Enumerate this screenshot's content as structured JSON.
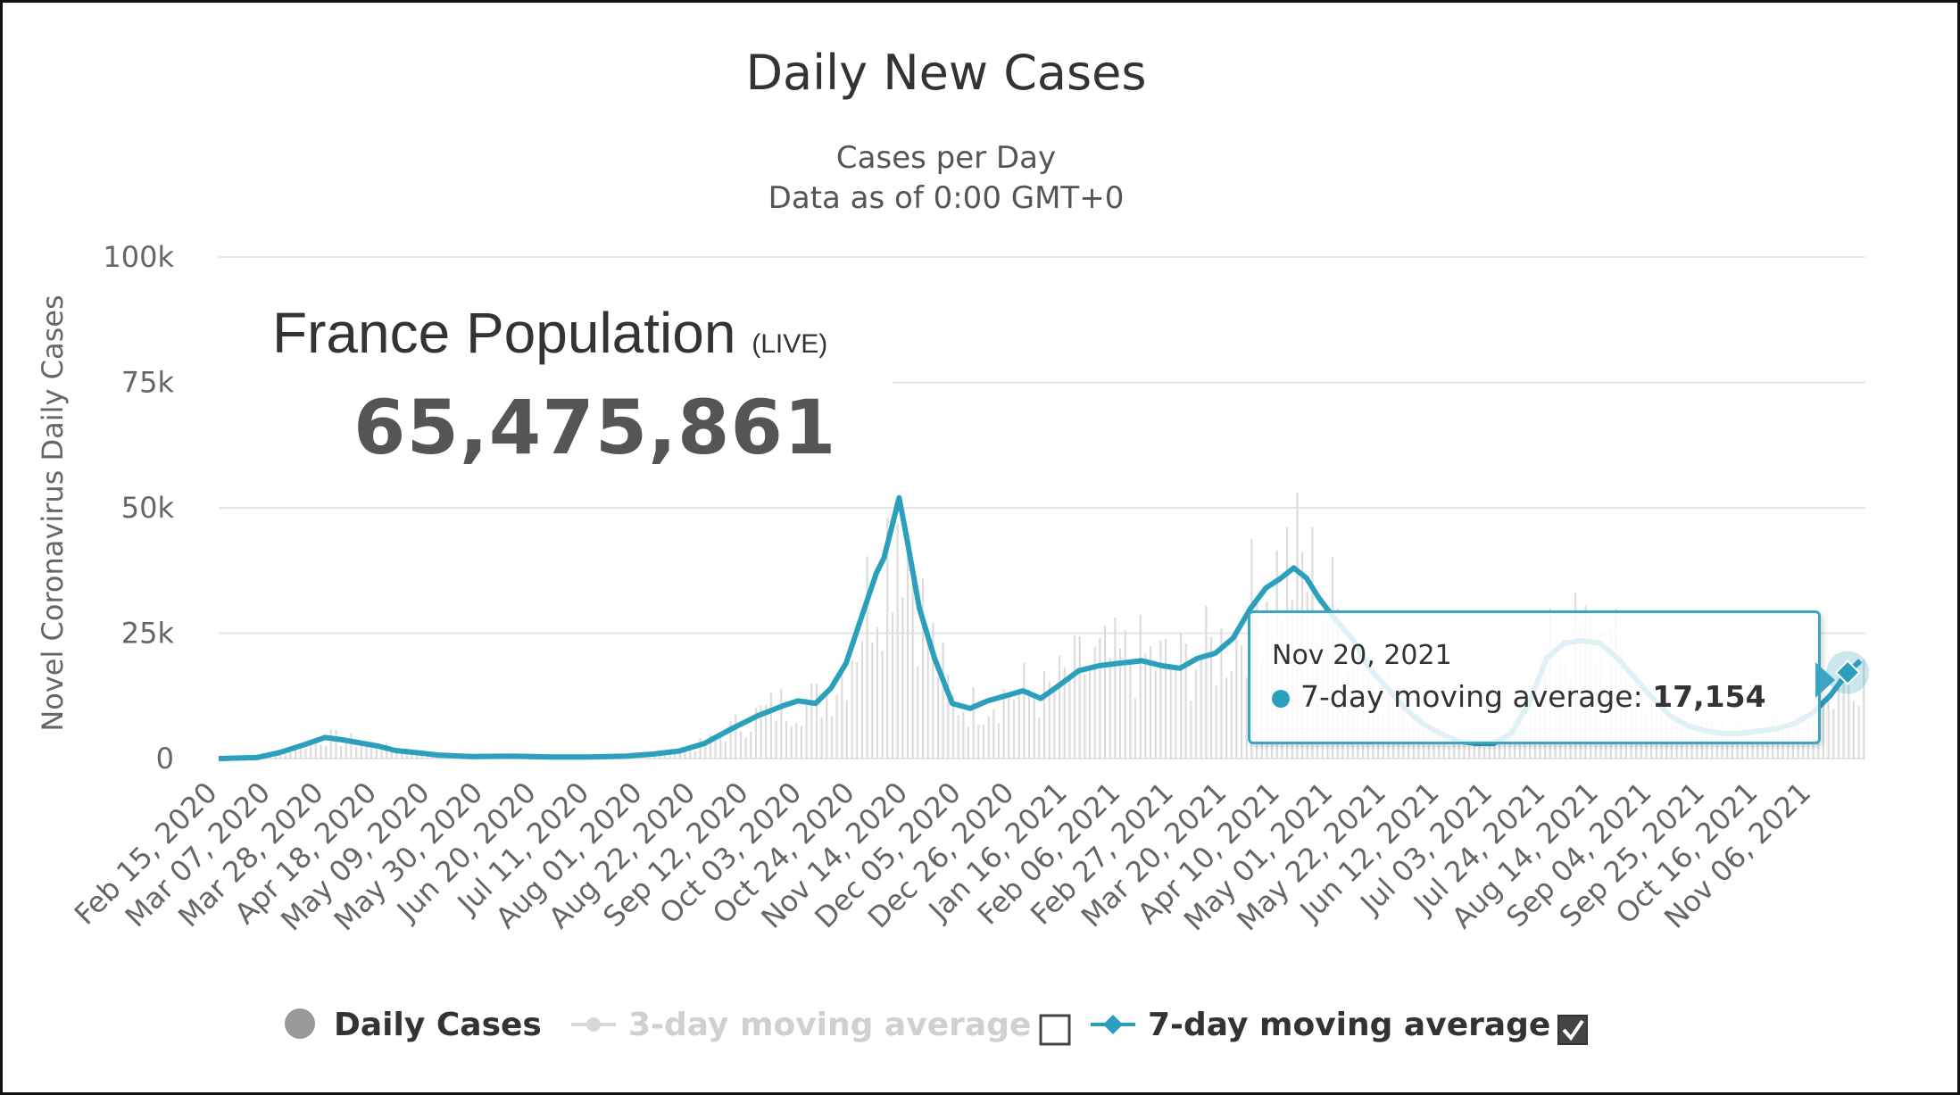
{
  "chart_data": {
    "type": "line",
    "title": "Daily New Cases",
    "subtitle_line1": "Cases per Day",
    "subtitle_line2": "Data as of 0:00 GMT+0",
    "ylabel": "Novel Coronavirus Daily Cases",
    "ylim": [
      0,
      100000
    ],
    "xlim": [
      "2020-02-15",
      "2021-11-27"
    ],
    "y_ticks": [
      {
        "value": 0,
        "label": "0"
      },
      {
        "value": 25000,
        "label": "25k"
      },
      {
        "value": 50000,
        "label": "50k"
      },
      {
        "value": 75000,
        "label": "75k"
      },
      {
        "value": 100000,
        "label": "100k"
      }
    ],
    "x_tick_labels": [
      "Feb 15, 2020",
      "Mar 07, 2020",
      "Mar 28, 2020",
      "Apr 18, 2020",
      "May 09, 2020",
      "May 30, 2020",
      "Jun 20, 2020",
      "Jul 11, 2020",
      "Aug 01, 2020",
      "Aug 22, 2020",
      "Sep 12, 2020",
      "Oct 03, 2020",
      "Oct 24, 2020",
      "Nov 14, 2020",
      "Dec 05, 2020",
      "Dec 26, 2020",
      "Jan 16, 2021",
      "Feb 06, 2021",
      "Feb 27, 2021",
      "Mar 20, 2021",
      "Apr 10, 2021",
      "May 01, 2021",
      "May 22, 2021",
      "Jun 12, 2021",
      "Jul 03, 2021",
      "Jul 24, 2021",
      "Aug 14, 2021",
      "Sep 04, 2021",
      "Sep 25, 2021",
      "Oct 16, 2021",
      "Nov 06, 2021"
    ],
    "series": [
      {
        "name": "7-day moving average",
        "color": "#2aa0bd",
        "x": [
          "2020-02-15",
          "2020-03-01",
          "2020-03-10",
          "2020-03-20",
          "2020-03-28",
          "2020-04-03",
          "2020-04-10",
          "2020-04-18",
          "2020-04-25",
          "2020-05-03",
          "2020-05-12",
          "2020-05-25",
          "2020-06-10",
          "2020-06-25",
          "2020-07-10",
          "2020-07-25",
          "2020-08-05",
          "2020-08-15",
          "2020-08-25",
          "2020-09-05",
          "2020-09-15",
          "2020-09-25",
          "2020-10-01",
          "2020-10-08",
          "2020-10-14",
          "2020-10-20",
          "2020-10-26",
          "2020-11-01",
          "2020-11-04",
          "2020-11-07",
          "2020-11-10",
          "2020-11-13",
          "2020-11-18",
          "2020-11-24",
          "2020-12-01",
          "2020-12-08",
          "2020-12-15",
          "2020-12-22",
          "2020-12-29",
          "2021-01-05",
          "2021-01-12",
          "2021-01-20",
          "2021-01-28",
          "2021-02-05",
          "2021-02-14",
          "2021-02-22",
          "2021-03-01",
          "2021-03-08",
          "2021-03-15",
          "2021-03-22",
          "2021-03-29",
          "2021-04-04",
          "2021-04-10",
          "2021-04-15",
          "2021-04-20",
          "2021-04-25",
          "2021-05-01",
          "2021-05-08",
          "2021-05-15",
          "2021-05-22",
          "2021-05-29",
          "2021-06-05",
          "2021-06-12",
          "2021-06-19",
          "2021-06-26",
          "2021-07-03",
          "2021-07-10",
          "2021-07-17",
          "2021-07-24",
          "2021-07-31",
          "2021-08-07",
          "2021-08-14",
          "2021-08-21",
          "2021-08-28",
          "2021-09-04",
          "2021-09-11",
          "2021-09-18",
          "2021-09-25",
          "2021-10-02",
          "2021-10-09",
          "2021-10-16",
          "2021-10-23",
          "2021-10-30",
          "2021-11-06",
          "2021-11-13",
          "2021-11-20",
          "2021-11-25"
        ],
        "values": [
          0,
          200,
          1200,
          2800,
          4200,
          3800,
          3200,
          2500,
          1600,
          1200,
          700,
          400,
          500,
          300,
          300,
          500,
          900,
          1500,
          3000,
          6000,
          8500,
          10500,
          11500,
          11000,
          14000,
          19000,
          28000,
          37000,
          40000,
          46000,
          52000,
          44000,
          30000,
          20000,
          11000,
          10000,
          11500,
          12500,
          13500,
          12000,
          14500,
          17500,
          18500,
          19000,
          19500,
          18500,
          18000,
          20000,
          21000,
          24000,
          30000,
          34000,
          36000,
          38000,
          36000,
          32000,
          28000,
          24000,
          18000,
          14000,
          10000,
          7000,
          5000,
          3500,
          3000,
          3000,
          5000,
          11000,
          20000,
          23000,
          23500,
          23000,
          20000,
          16000,
          12000,
          8500,
          6500,
          5500,
          5000,
          5000,
          5500,
          6000,
          7000,
          9000,
          12500,
          17154,
          19500
        ]
      },
      {
        "name": "Daily Cases",
        "color": "#dddddd",
        "style": "bars"
      }
    ],
    "tooltip": {
      "date": "Nov 20, 2021",
      "series": "7-day moving average",
      "value": "17,154"
    },
    "legend": {
      "position": "bottom",
      "items": [
        {
          "label": "Daily Cases",
          "color": "#999999",
          "marker": "circle"
        },
        {
          "label": "3-day moving average",
          "color": "#d8d8d8",
          "marker": "circle-line",
          "checked": false
        },
        {
          "label": "7-day moving average",
          "color": "#2aa0bd",
          "marker": "diamond-line",
          "checked": true
        }
      ]
    },
    "grid": true
  },
  "overlay": {
    "population_label": "France Population",
    "population_live": "(LIVE)",
    "population_value": "65,475,861"
  },
  "colors": {
    "accent": "#2aa0bd",
    "grid": "#e6e6e6",
    "bars": "#dcdcdc"
  }
}
